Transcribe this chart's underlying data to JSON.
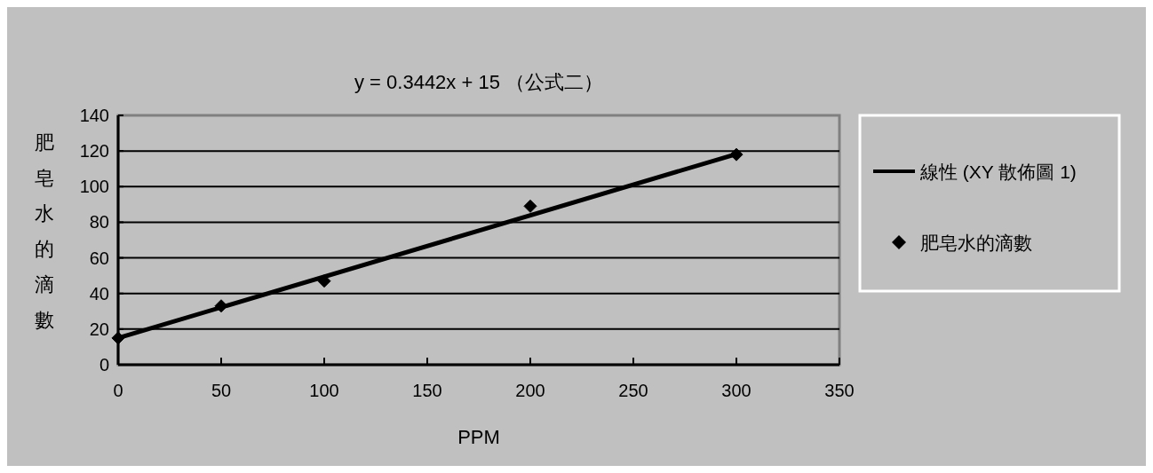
{
  "chart_data": {
    "type": "scatter",
    "title": "y = 0.3442x + 15 （公式二）",
    "xlabel": "PPM",
    "ylabel": "肥皂水的滴數",
    "series": [
      {
        "name": "線性 (XY 散佈圖 1)",
        "type": "line",
        "x": [
          0,
          300
        ],
        "values": [
          15,
          118.3
        ],
        "color": "#000000",
        "marker": "none"
      },
      {
        "name": "肥皂水的滴數",
        "type": "scatter",
        "x": [
          0,
          50,
          100,
          200,
          300
        ],
        "values": [
          15,
          33,
          47,
          89,
          118
        ],
        "color": "#000000",
        "marker": "diamond"
      }
    ],
    "xlim": [
      0,
      350
    ],
    "xticks": [
      0,
      50,
      100,
      150,
      200,
      250,
      300,
      350
    ],
    "ylim": [
      0,
      140
    ],
    "yticks": [
      0,
      20,
      40,
      60,
      80,
      100,
      120,
      140
    ],
    "grid": "y",
    "legend": "right"
  }
}
